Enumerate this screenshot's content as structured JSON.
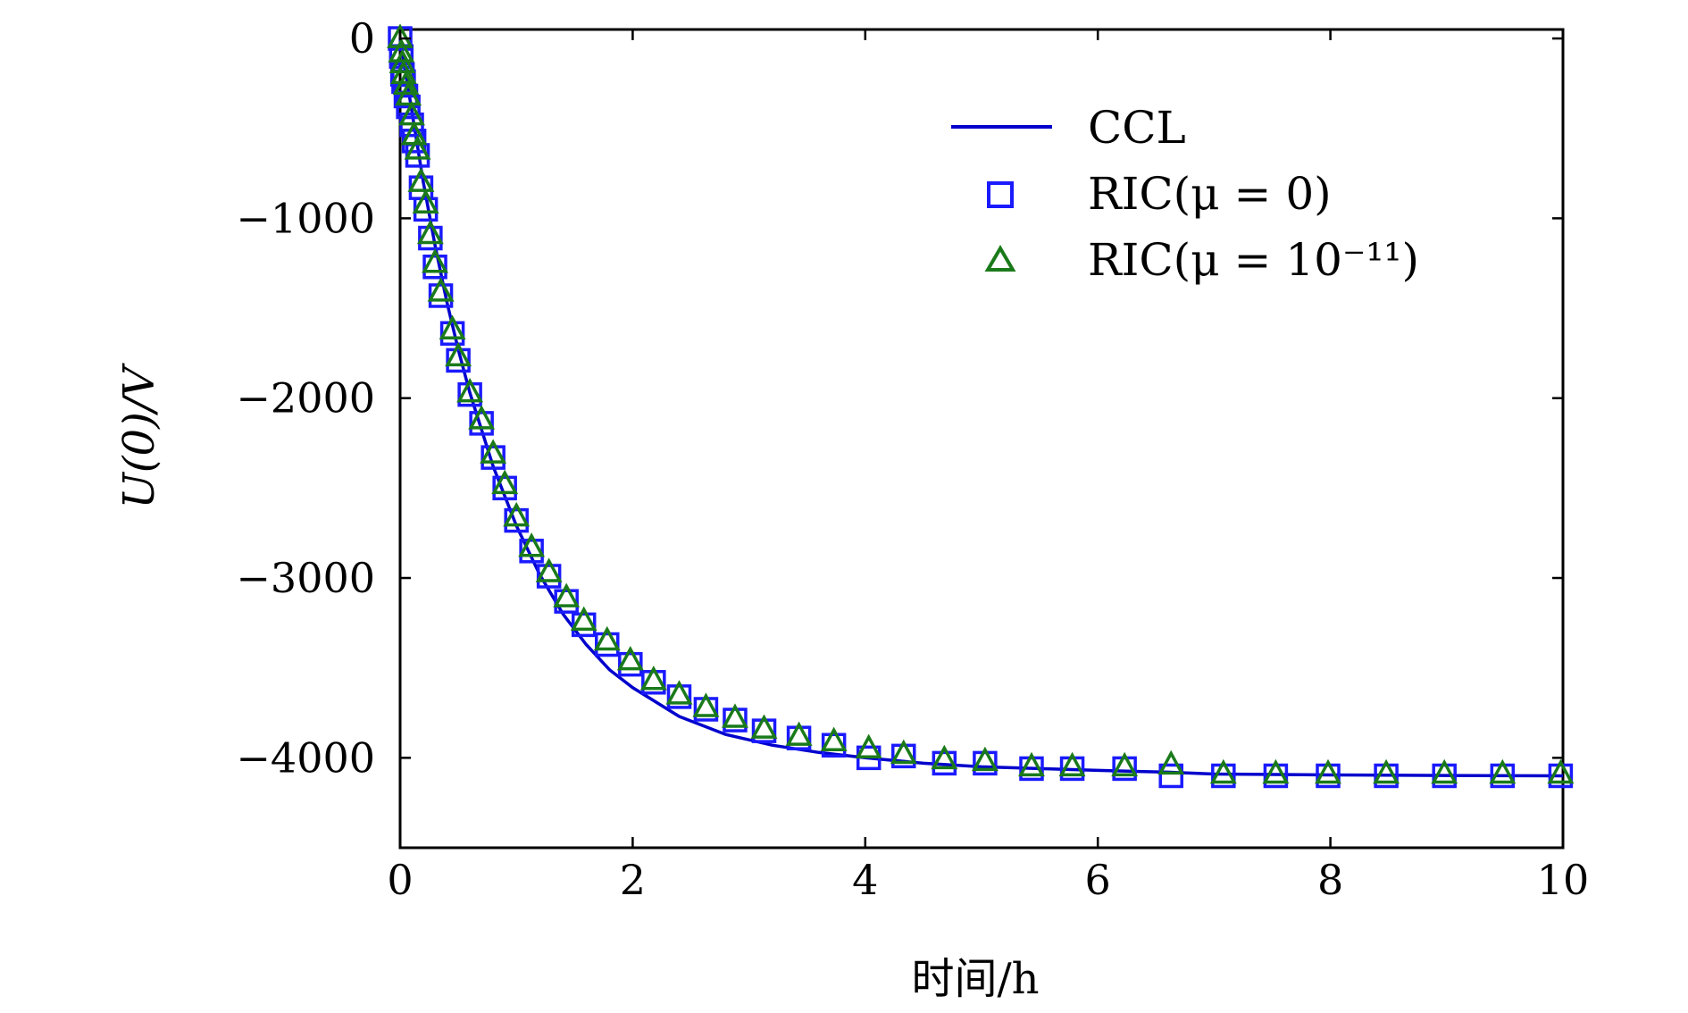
{
  "chart_data": {
    "type": "line",
    "title": "",
    "xlabel": "时间/h",
    "ylabel": "U(0)/V",
    "xlim": [
      0,
      10
    ],
    "ylim": [
      -4500,
      50
    ],
    "x_ticks": [
      0,
      2,
      4,
      6,
      8,
      10
    ],
    "x_tick_labels": [
      "0",
      "2",
      "4",
      "6",
      "8",
      "10"
    ],
    "y_ticks": [
      0,
      -1000,
      -2000,
      -3000,
      -4000
    ],
    "y_tick_labels": [
      "0",
      "−1000",
      "−2000",
      "−3000",
      "−4000"
    ],
    "grid": false,
    "legend_position": "top-right",
    "series": [
      {
        "name": "CCL",
        "style": "line",
        "color": "#0000cc",
        "x": [
          0,
          0.02,
          0.05,
          0.1,
          0.15,
          0.2,
          0.3,
          0.4,
          0.5,
          0.6,
          0.8,
          1.0,
          1.2,
          1.4,
          1.6,
          1.8,
          2.0,
          2.4,
          2.8,
          3.2,
          3.6,
          4.0,
          4.5,
          5.0,
          5.5,
          6.0,
          6.6,
          7.0,
          8.0,
          9.0,
          10.0
        ],
        "y": [
          0,
          -80,
          -200,
          -400,
          -600,
          -800,
          -1150,
          -1460,
          -1730,
          -1970,
          -2380,
          -2710,
          -2980,
          -3200,
          -3370,
          -3510,
          -3610,
          -3770,
          -3870,
          -3930,
          -3970,
          -4000,
          -4030,
          -4050,
          -4060,
          -4070,
          -4080,
          -4090,
          -4095,
          -4098,
          -4100
        ]
      },
      {
        "name": "RIC(μ = 0)",
        "style": "square",
        "color": "#1a1aff",
        "x": [
          0,
          0.01,
          0.02,
          0.03,
          0.05,
          0.07,
          0.1,
          0.12,
          0.15,
          0.18,
          0.22,
          0.26,
          0.3,
          0.35,
          0.45,
          0.5,
          0.6,
          0.7,
          0.8,
          0.9,
          1.0,
          1.13,
          1.28,
          1.43,
          1.58,
          1.78,
          1.98,
          2.18,
          2.4,
          2.63,
          2.88,
          3.13,
          3.43,
          3.73,
          4.03,
          4.33,
          4.68,
          5.03,
          5.43,
          5.78,
          6.23,
          6.63,
          7.08,
          7.53,
          7.98,
          8.48,
          8.98,
          9.48,
          9.98
        ],
        "y": [
          0,
          -100,
          -200,
          -240,
          -320,
          -380,
          -480,
          -570,
          -650,
          -830,
          -950,
          -1110,
          -1270,
          -1430,
          -1640,
          -1790,
          -1980,
          -2140,
          -2330,
          -2500,
          -2680,
          -2850,
          -2990,
          -3130,
          -3260,
          -3370,
          -3480,
          -3580,
          -3660,
          -3730,
          -3790,
          -3850,
          -3890,
          -3930,
          -4000,
          -3990,
          -4030,
          -4030,
          -4060,
          -4060,
          -4060,
          -4100,
          -4100,
          -4100,
          -4100,
          -4100,
          -4100,
          -4100,
          -4100
        ]
      },
      {
        "name": "RIC(μ = 10⁻¹¹)",
        "style": "triangle",
        "color": "#1a7a1a",
        "x": [
          0,
          0.01,
          0.02,
          0.03,
          0.05,
          0.07,
          0.1,
          0.12,
          0.15,
          0.18,
          0.22,
          0.26,
          0.3,
          0.35,
          0.45,
          0.5,
          0.6,
          0.7,
          0.8,
          0.9,
          1.0,
          1.13,
          1.28,
          1.43,
          1.58,
          1.78,
          1.98,
          2.18,
          2.4,
          2.63,
          2.88,
          3.13,
          3.43,
          3.73,
          4.03,
          4.33,
          4.68,
          5.03,
          5.43,
          5.78,
          6.23,
          6.63,
          7.08,
          7.53,
          7.98,
          8.48,
          8.98,
          9.48,
          9.98
        ],
        "y": [
          0,
          -80,
          -140,
          -200,
          -260,
          -320,
          -430,
          -540,
          -620,
          -800,
          -920,
          -1090,
          -1250,
          -1410,
          -1620,
          -1770,
          -1970,
          -2120,
          -2310,
          -2480,
          -2660,
          -2830,
          -2970,
          -3110,
          -3240,
          -3350,
          -3460,
          -3570,
          -3650,
          -3720,
          -3780,
          -3840,
          -3880,
          -3910,
          -3950,
          -3980,
          -4010,
          -4020,
          -4050,
          -4050,
          -4050,
          -4040,
          -4090,
          -4090,
          -4090,
          -4090,
          -4090,
          -4090,
          -4090
        ]
      }
    ]
  }
}
